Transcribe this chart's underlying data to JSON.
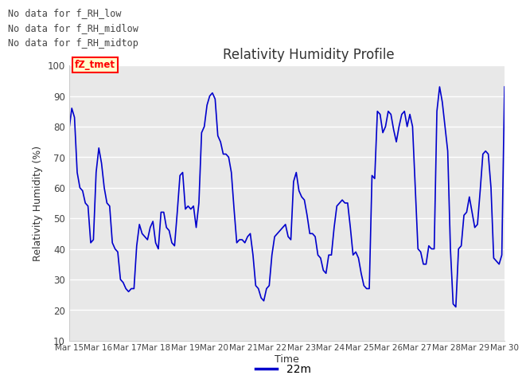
{
  "title": "Relativity Humidity Profile",
  "ylabel": "Relativity Humidity (%)",
  "xlabel": "Time",
  "ylim": [
    10,
    100
  ],
  "yticks": [
    10,
    20,
    30,
    40,
    50,
    60,
    70,
    80,
    90,
    100
  ],
  "line_color": "#0000CC",
  "line_width": 1.2,
  "legend_label": "22m",
  "legend_color": "#0000CC",
  "no_data_texts": [
    "No data for f_RH_low",
    "No data for f_RH_midlow",
    "No data for f_RH_midtop"
  ],
  "annotation_text": "fZ_tmet",
  "background_color": "#FFFFFF",
  "plot_bg_color": "#E8E8E8",
  "x_labels": [
    "Mar 15",
    "Mar 16",
    "Mar 17",
    "Mar 18",
    "Mar 19",
    "Mar 20",
    "Mar 21",
    "Mar 22",
    "Mar 23",
    "Mar 24",
    "Mar 25",
    "Mar 26",
    "Mar 27",
    "Mar 28",
    "Mar 29",
    "Mar 30"
  ],
  "rh_data": [
    79,
    86,
    83,
    65,
    60,
    59,
    55,
    54,
    42,
    43,
    65,
    73,
    68,
    60,
    55,
    54,
    42,
    40,
    39,
    30,
    29,
    27,
    26,
    27,
    27,
    41,
    48,
    45,
    44,
    43,
    47,
    49,
    42,
    40,
    52,
    52,
    47,
    46,
    42,
    41,
    52,
    64,
    65,
    53,
    54,
    53,
    54,
    47,
    55,
    78,
    80,
    87,
    90,
    91,
    89,
    77,
    75,
    71,
    71,
    70,
    65,
    53,
    42,
    43,
    43,
    42,
    44,
    45,
    38,
    28,
    27,
    24,
    23,
    27,
    28,
    38,
    44,
    45,
    46,
    47,
    48,
    44,
    43,
    62,
    65,
    59,
    57,
    56,
    51,
    45,
    45,
    44,
    38,
    37,
    33,
    32,
    38,
    38,
    47,
    54,
    55,
    56,
    55,
    55,
    47,
    38,
    39,
    37,
    32,
    28,
    27,
    27,
    64,
    63,
    85,
    84,
    78,
    80,
    85,
    84,
    79,
    75,
    80,
    84,
    85,
    80,
    84,
    80,
    60,
    40,
    39,
    35,
    35,
    41,
    40,
    40,
    85,
    93,
    88,
    80,
    72,
    40,
    22,
    21,
    40,
    41,
    51,
    52,
    57,
    52,
    47,
    48,
    59,
    71,
    72,
    71,
    60,
    37,
    36,
    35,
    38,
    93
  ]
}
